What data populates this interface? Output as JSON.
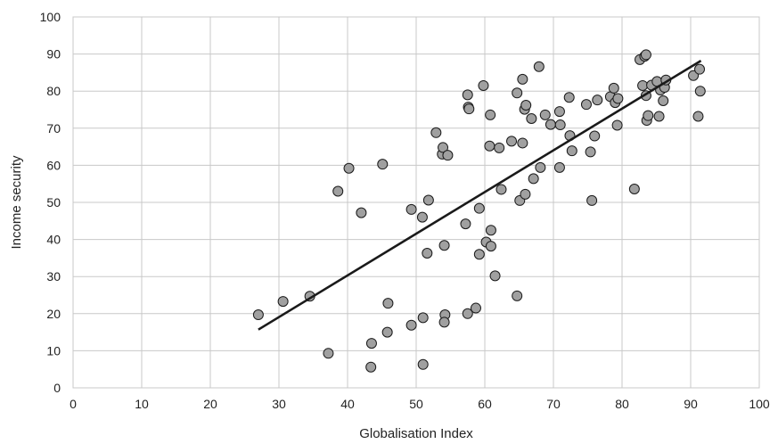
{
  "chart_data": {
    "type": "scatter",
    "title": "",
    "xlabel": "Globalisation Index",
    "ylabel": "Income security",
    "xlim": [
      0,
      100
    ],
    "ylim": [
      0,
      100
    ],
    "xticks": [
      0,
      10,
      20,
      30,
      40,
      50,
      60,
      70,
      80,
      90,
      100
    ],
    "yticks": [
      0,
      10,
      20,
      30,
      40,
      50,
      60,
      70,
      80,
      90,
      100
    ],
    "grid": true,
    "legend": "none",
    "colors": {
      "marker_fill": "#a0a0a0",
      "marker_stroke": "#1a1a1a",
      "trendline": "#1a1a1a",
      "grid": "#c8c8c8"
    },
    "trendline": {
      "x": [
        27,
        91.5
      ],
      "y": [
        15.7,
        88.2
      ]
    },
    "points": [
      [
        27.0,
        19.7
      ],
      [
        30.6,
        23.3
      ],
      [
        34.5,
        24.7
      ],
      [
        37.2,
        9.3
      ],
      [
        38.6,
        53.0
      ],
      [
        40.2,
        59.2
      ],
      [
        42.0,
        47.2
      ],
      [
        43.5,
        12.0
      ],
      [
        43.4,
        5.6
      ],
      [
        45.1,
        60.3
      ],
      [
        45.8,
        15.0
      ],
      [
        45.9,
        22.8
      ],
      [
        49.3,
        48.1
      ],
      [
        49.3,
        16.9
      ],
      [
        50.9,
        46.0
      ],
      [
        51.0,
        18.9
      ],
      [
        51.0,
        6.3
      ],
      [
        51.6,
        36.3
      ],
      [
        51.8,
        50.6
      ],
      [
        52.9,
        68.8
      ],
      [
        53.8,
        63.0
      ],
      [
        53.9,
        64.8
      ],
      [
        54.6,
        62.7
      ],
      [
        54.1,
        38.4
      ],
      [
        54.2,
        19.7
      ],
      [
        54.1,
        17.7
      ],
      [
        57.2,
        44.2
      ],
      [
        57.5,
        79.0
      ],
      [
        57.6,
        75.7
      ],
      [
        57.7,
        75.2
      ],
      [
        57.5,
        20.0
      ],
      [
        58.7,
        21.5
      ],
      [
        59.2,
        48.4
      ],
      [
        59.2,
        36.0
      ],
      [
        59.8,
        81.5
      ],
      [
        60.2,
        39.3
      ],
      [
        60.7,
        65.2
      ],
      [
        60.8,
        73.6
      ],
      [
        60.9,
        42.5
      ],
      [
        60.9,
        38.2
      ],
      [
        61.5,
        30.2
      ],
      [
        62.1,
        64.7
      ],
      [
        62.4,
        53.5
      ],
      [
        63.9,
        66.5
      ],
      [
        64.7,
        79.5
      ],
      [
        64.7,
        24.8
      ],
      [
        65.1,
        50.5
      ],
      [
        65.5,
        66.0
      ],
      [
        65.5,
        83.2
      ],
      [
        65.8,
        75.1
      ],
      [
        66.0,
        76.2
      ],
      [
        65.9,
        52.2
      ],
      [
        66.8,
        72.6
      ],
      [
        67.1,
        56.4
      ],
      [
        67.9,
        86.6
      ],
      [
        68.1,
        59.4
      ],
      [
        68.8,
        73.6
      ],
      [
        69.6,
        71.0
      ],
      [
        70.9,
        74.5
      ],
      [
        71.0,
        70.9
      ],
      [
        70.9,
        59.4
      ],
      [
        72.3,
        78.3
      ],
      [
        72.4,
        68.0
      ],
      [
        72.7,
        63.9
      ],
      [
        74.8,
        76.4
      ],
      [
        75.4,
        63.6
      ],
      [
        75.6,
        50.5
      ],
      [
        76.0,
        67.9
      ],
      [
        76.4,
        77.6
      ],
      [
        78.3,
        78.5
      ],
      [
        78.8,
        80.8
      ],
      [
        79.0,
        76.9
      ],
      [
        79.4,
        78.0
      ],
      [
        79.3,
        70.8
      ],
      [
        81.8,
        53.6
      ],
      [
        82.6,
        88.5
      ],
      [
        83.0,
        81.5
      ],
      [
        83.3,
        89.4
      ],
      [
        83.5,
        89.8
      ],
      [
        83.5,
        78.8
      ],
      [
        83.6,
        72.1
      ],
      [
        83.8,
        73.4
      ],
      [
        84.3,
        81.6
      ],
      [
        85.1,
        82.6
      ],
      [
        85.4,
        73.2
      ],
      [
        85.6,
        80.3
      ],
      [
        86.0,
        77.4
      ],
      [
        86.2,
        81.0
      ],
      [
        86.4,
        83.0
      ],
      [
        90.4,
        84.2
      ],
      [
        91.3,
        85.9
      ],
      [
        91.4,
        80.0
      ],
      [
        91.1,
        73.2
      ]
    ]
  }
}
